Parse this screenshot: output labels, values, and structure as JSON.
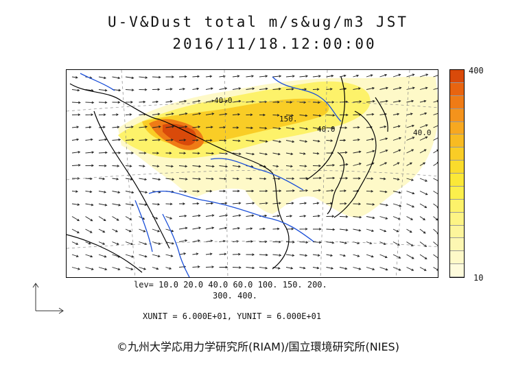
{
  "title": {
    "line1": "U-V&Dust total m/s&ug/m3 JST",
    "line2": "2016/11/18.12:00:00"
  },
  "colorbar": {
    "max_label": "400",
    "min_label": "10",
    "colors": [
      "#d94a0a",
      "#e86410",
      "#ef7b16",
      "#f4931c",
      "#f7a820",
      "#f8bb22",
      "#f9cd26",
      "#fadc2c",
      "#fbe838",
      "#fcef4c",
      "#fdf26a",
      "#fdf485",
      "#fdf59c",
      "#fdf7b2",
      "#fef9c8",
      "#fefbdc"
    ]
  },
  "levels": {
    "line1": "lev= 10.0 20.0 40.0 60.0 100. 150. 200.",
    "line2": "300. 400."
  },
  "units": {
    "text": "XUNIT = 6.000E+01, YUNIT = 6.000E+01"
  },
  "map": {
    "contour_labels": [
      "40.0",
      "150.",
      "40.0",
      "40.0"
    ],
    "colors": {
      "coast": "#000000",
      "river": "#1a4fd8",
      "max": "#d94a0a",
      "high": "#ef7b16",
      "mid": "#f9cd26",
      "low": "#fdf26a",
      "faint": "#fef9c8"
    }
  },
  "credit": "©九州大学応用力学研究所(RIAM)/国立環境研究所(NIES)"
}
